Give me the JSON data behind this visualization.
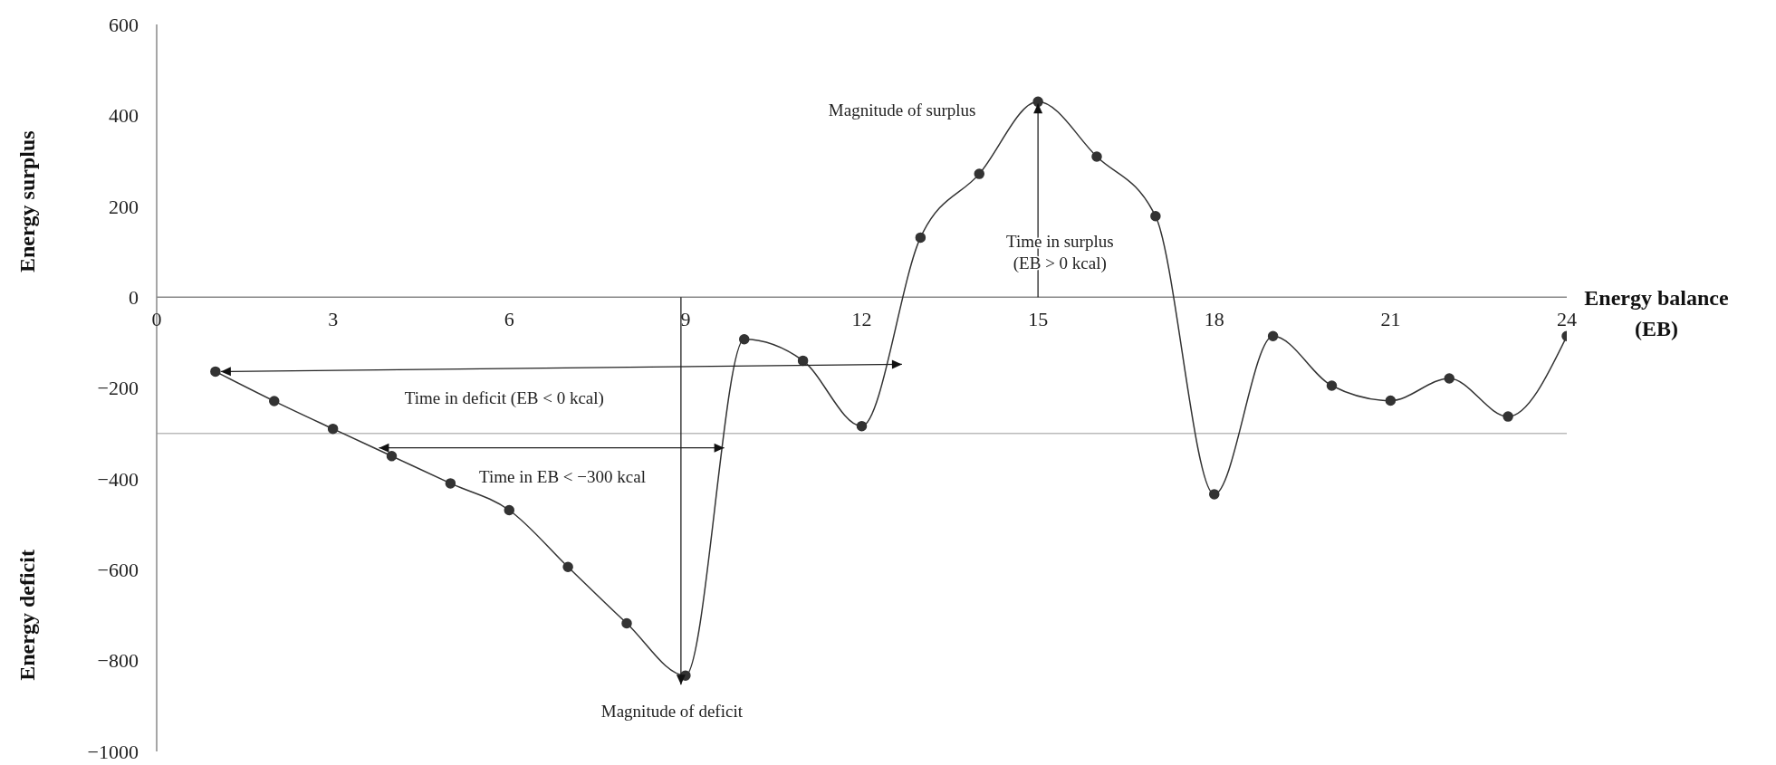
{
  "chart_data": {
    "type": "line",
    "xlabel": "Energy balance (EB)",
    "ylabel": "Energy surplus",
    "x": [
      1,
      2,
      3,
      4,
      5,
      6,
      7,
      8,
      9,
      10,
      11,
      12,
      13,
      14,
      15,
      16,
      17,
      18,
      19,
      20,
      21,
      22,
      23,
      24
    ],
    "series": [
      {
        "color": "#333333",
        "values": [
          -164,
          -229,
          -290,
          -350,
          -410,
          -469,
          -594,
          -718,
          -833,
          -93,
          -140,
          -284,
          131,
          271,
          430,
          309,
          178,
          -434,
          -86,
          -195,
          -228,
          -179,
          -263,
          -86
        ]
      }
    ],
    "xlim": [
      0,
      24
    ],
    "xticks": [
      0,
      3,
      6,
      9,
      12,
      15,
      18,
      21,
      24
    ],
    "ylim": [
      -1000,
      600
    ],
    "yticks": [
      {
        "value": -1000,
        "label": "−1000"
      },
      {
        "value": -800,
        "label": "−800"
      },
      {
        "value": -600,
        "label": "−600"
      },
      {
        "value": -400,
        "label": "−400"
      },
      {
        "value": -200,
        "label": "−200"
      },
      0,
      200,
      400,
      600
    ],
    "ref_lines": [
      {
        "axis": "y",
        "value": -300,
        "color": "#bbbbbb"
      }
    ],
    "annotations": [
      "Time in deficit (EB < 0 kcal)",
      "Time in EB < −300 kcal",
      "Magnitude of deficit",
      "Magnitude of surplus",
      "Time in surplus\n(EB > 0 kcal)",
      "Energy deficit"
    ],
    "marker": "circle",
    "line_style": "solid"
  }
}
